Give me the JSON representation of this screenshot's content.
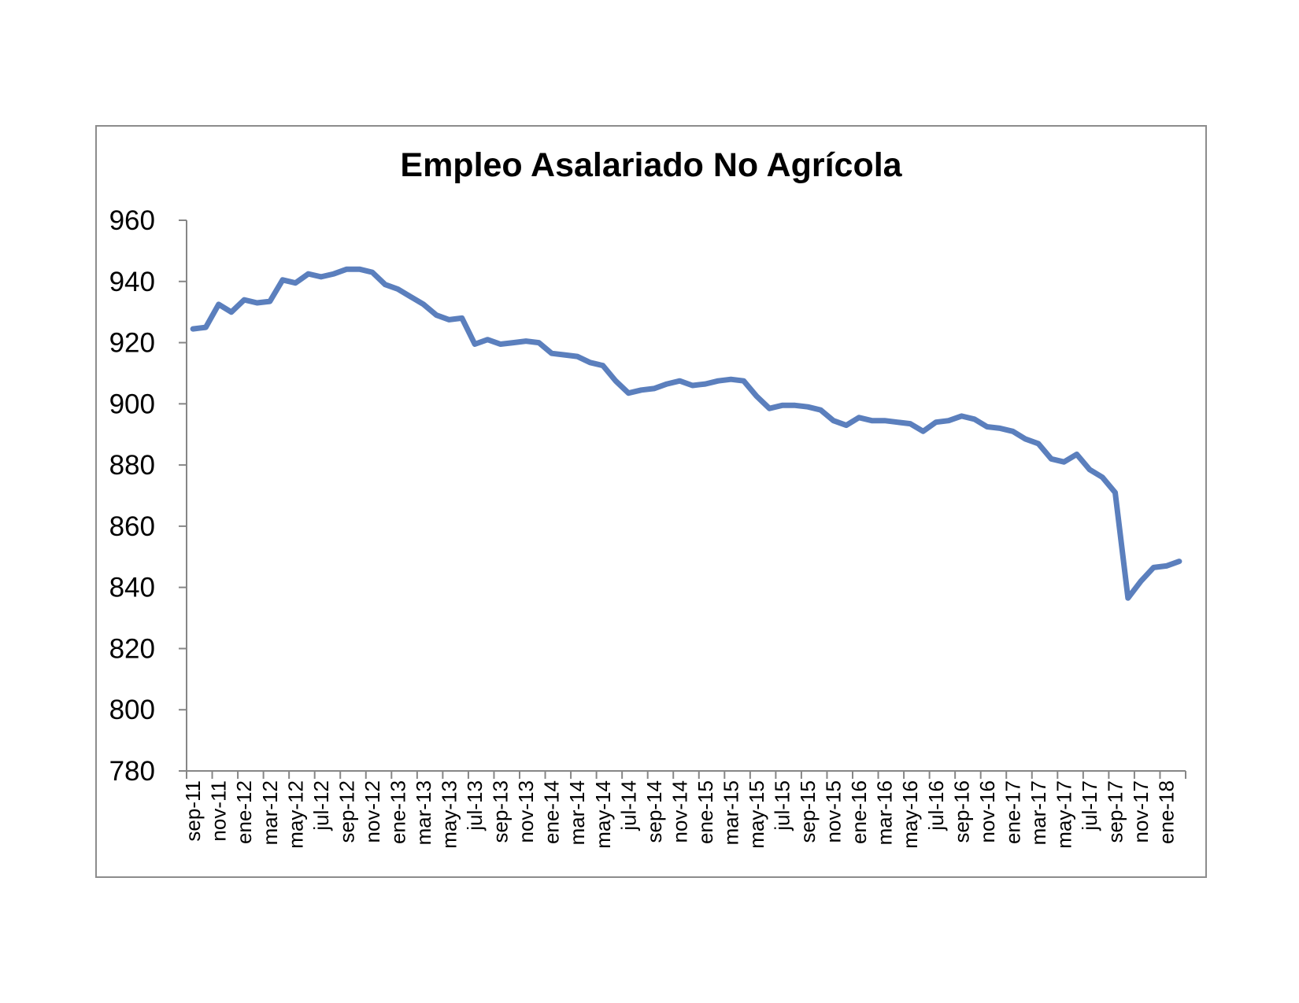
{
  "chart_data": {
    "type": "line",
    "title": "Empleo Asalariado No Agrícola",
    "xlabel": "",
    "ylabel": "",
    "ylim": [
      780,
      960
    ],
    "yticks": [
      780,
      800,
      820,
      840,
      860,
      880,
      900,
      920,
      940,
      960
    ],
    "grid": false,
    "legend": "none",
    "line_color": "#5b7fbd",
    "x_tick_labels": [
      "sep-11",
      "nov-11",
      "ene-12",
      "mar-12",
      "may-12",
      "jul-12",
      "sep-12",
      "nov-12",
      "ene-13",
      "mar-13",
      "may-13",
      "jul-13",
      "sep-13",
      "nov-13",
      "ene-14",
      "mar-14",
      "may-14",
      "jul-14",
      "sep-14",
      "nov-14",
      "ene-15",
      "mar-15",
      "may-15",
      "jul-15",
      "sep-15",
      "nov-15",
      "ene-16",
      "mar-16",
      "may-16",
      "jul-16",
      "sep-16",
      "nov-16",
      "ene-17",
      "mar-17",
      "may-17",
      "jul-17",
      "sep-17",
      "nov-17",
      "ene-18"
    ],
    "x": [
      "sep-11",
      "oct-11",
      "nov-11",
      "dic-11",
      "ene-12",
      "feb-12",
      "mar-12",
      "abr-12",
      "may-12",
      "jun-12",
      "jul-12",
      "ago-12",
      "sep-12",
      "oct-12",
      "nov-12",
      "dic-12",
      "ene-13",
      "feb-13",
      "mar-13",
      "abr-13",
      "may-13",
      "jun-13",
      "jul-13",
      "ago-13",
      "sep-13",
      "oct-13",
      "nov-13",
      "dic-13",
      "ene-14",
      "feb-14",
      "mar-14",
      "abr-14",
      "may-14",
      "jun-14",
      "jul-14",
      "ago-14",
      "sep-14",
      "oct-14",
      "nov-14",
      "dic-14",
      "ene-15",
      "feb-15",
      "mar-15",
      "abr-15",
      "may-15",
      "jun-15",
      "jul-15",
      "ago-15",
      "sep-15",
      "oct-15",
      "nov-15",
      "dic-15",
      "ene-16",
      "feb-16",
      "mar-16",
      "abr-16",
      "may-16",
      "jun-16",
      "jul-16",
      "ago-16",
      "sep-16",
      "oct-16",
      "nov-16",
      "dic-16",
      "ene-17",
      "feb-17",
      "mar-17",
      "abr-17",
      "may-17",
      "jun-17",
      "jul-17",
      "ago-17",
      "sep-17",
      "oct-17",
      "nov-17",
      "dic-17",
      "ene-18",
      "feb-18"
    ],
    "series": [
      {
        "values": [
          924.5,
          925.0,
          932.5,
          930.0,
          934.0,
          933.0,
          933.5,
          940.5,
          939.5,
          942.5,
          941.5,
          942.5,
          944.0,
          944.0,
          943.0,
          939.0,
          937.5,
          935.0,
          932.5,
          929.0,
          927.5,
          928.0,
          919.5,
          921.0,
          919.5,
          920.0,
          920.5,
          920.0,
          916.5,
          916.0,
          915.5,
          913.5,
          912.5,
          907.5,
          903.5,
          904.5,
          905.0,
          906.5,
          907.5,
          906.0,
          906.5,
          907.5,
          908.0,
          907.5,
          902.5,
          898.5,
          899.5,
          899.5,
          899.0,
          898.0,
          894.5,
          893.0,
          895.5,
          894.5,
          894.5,
          894.0,
          893.5,
          891.0,
          894.0,
          894.5,
          896.0,
          895.0,
          892.5,
          892.0,
          891.0,
          888.5,
          887.0,
          882.0,
          881.0,
          883.5,
          878.5,
          876.0,
          871.0,
          836.5,
          842.0,
          846.5,
          847.0,
          848.5
        ]
      }
    ]
  }
}
